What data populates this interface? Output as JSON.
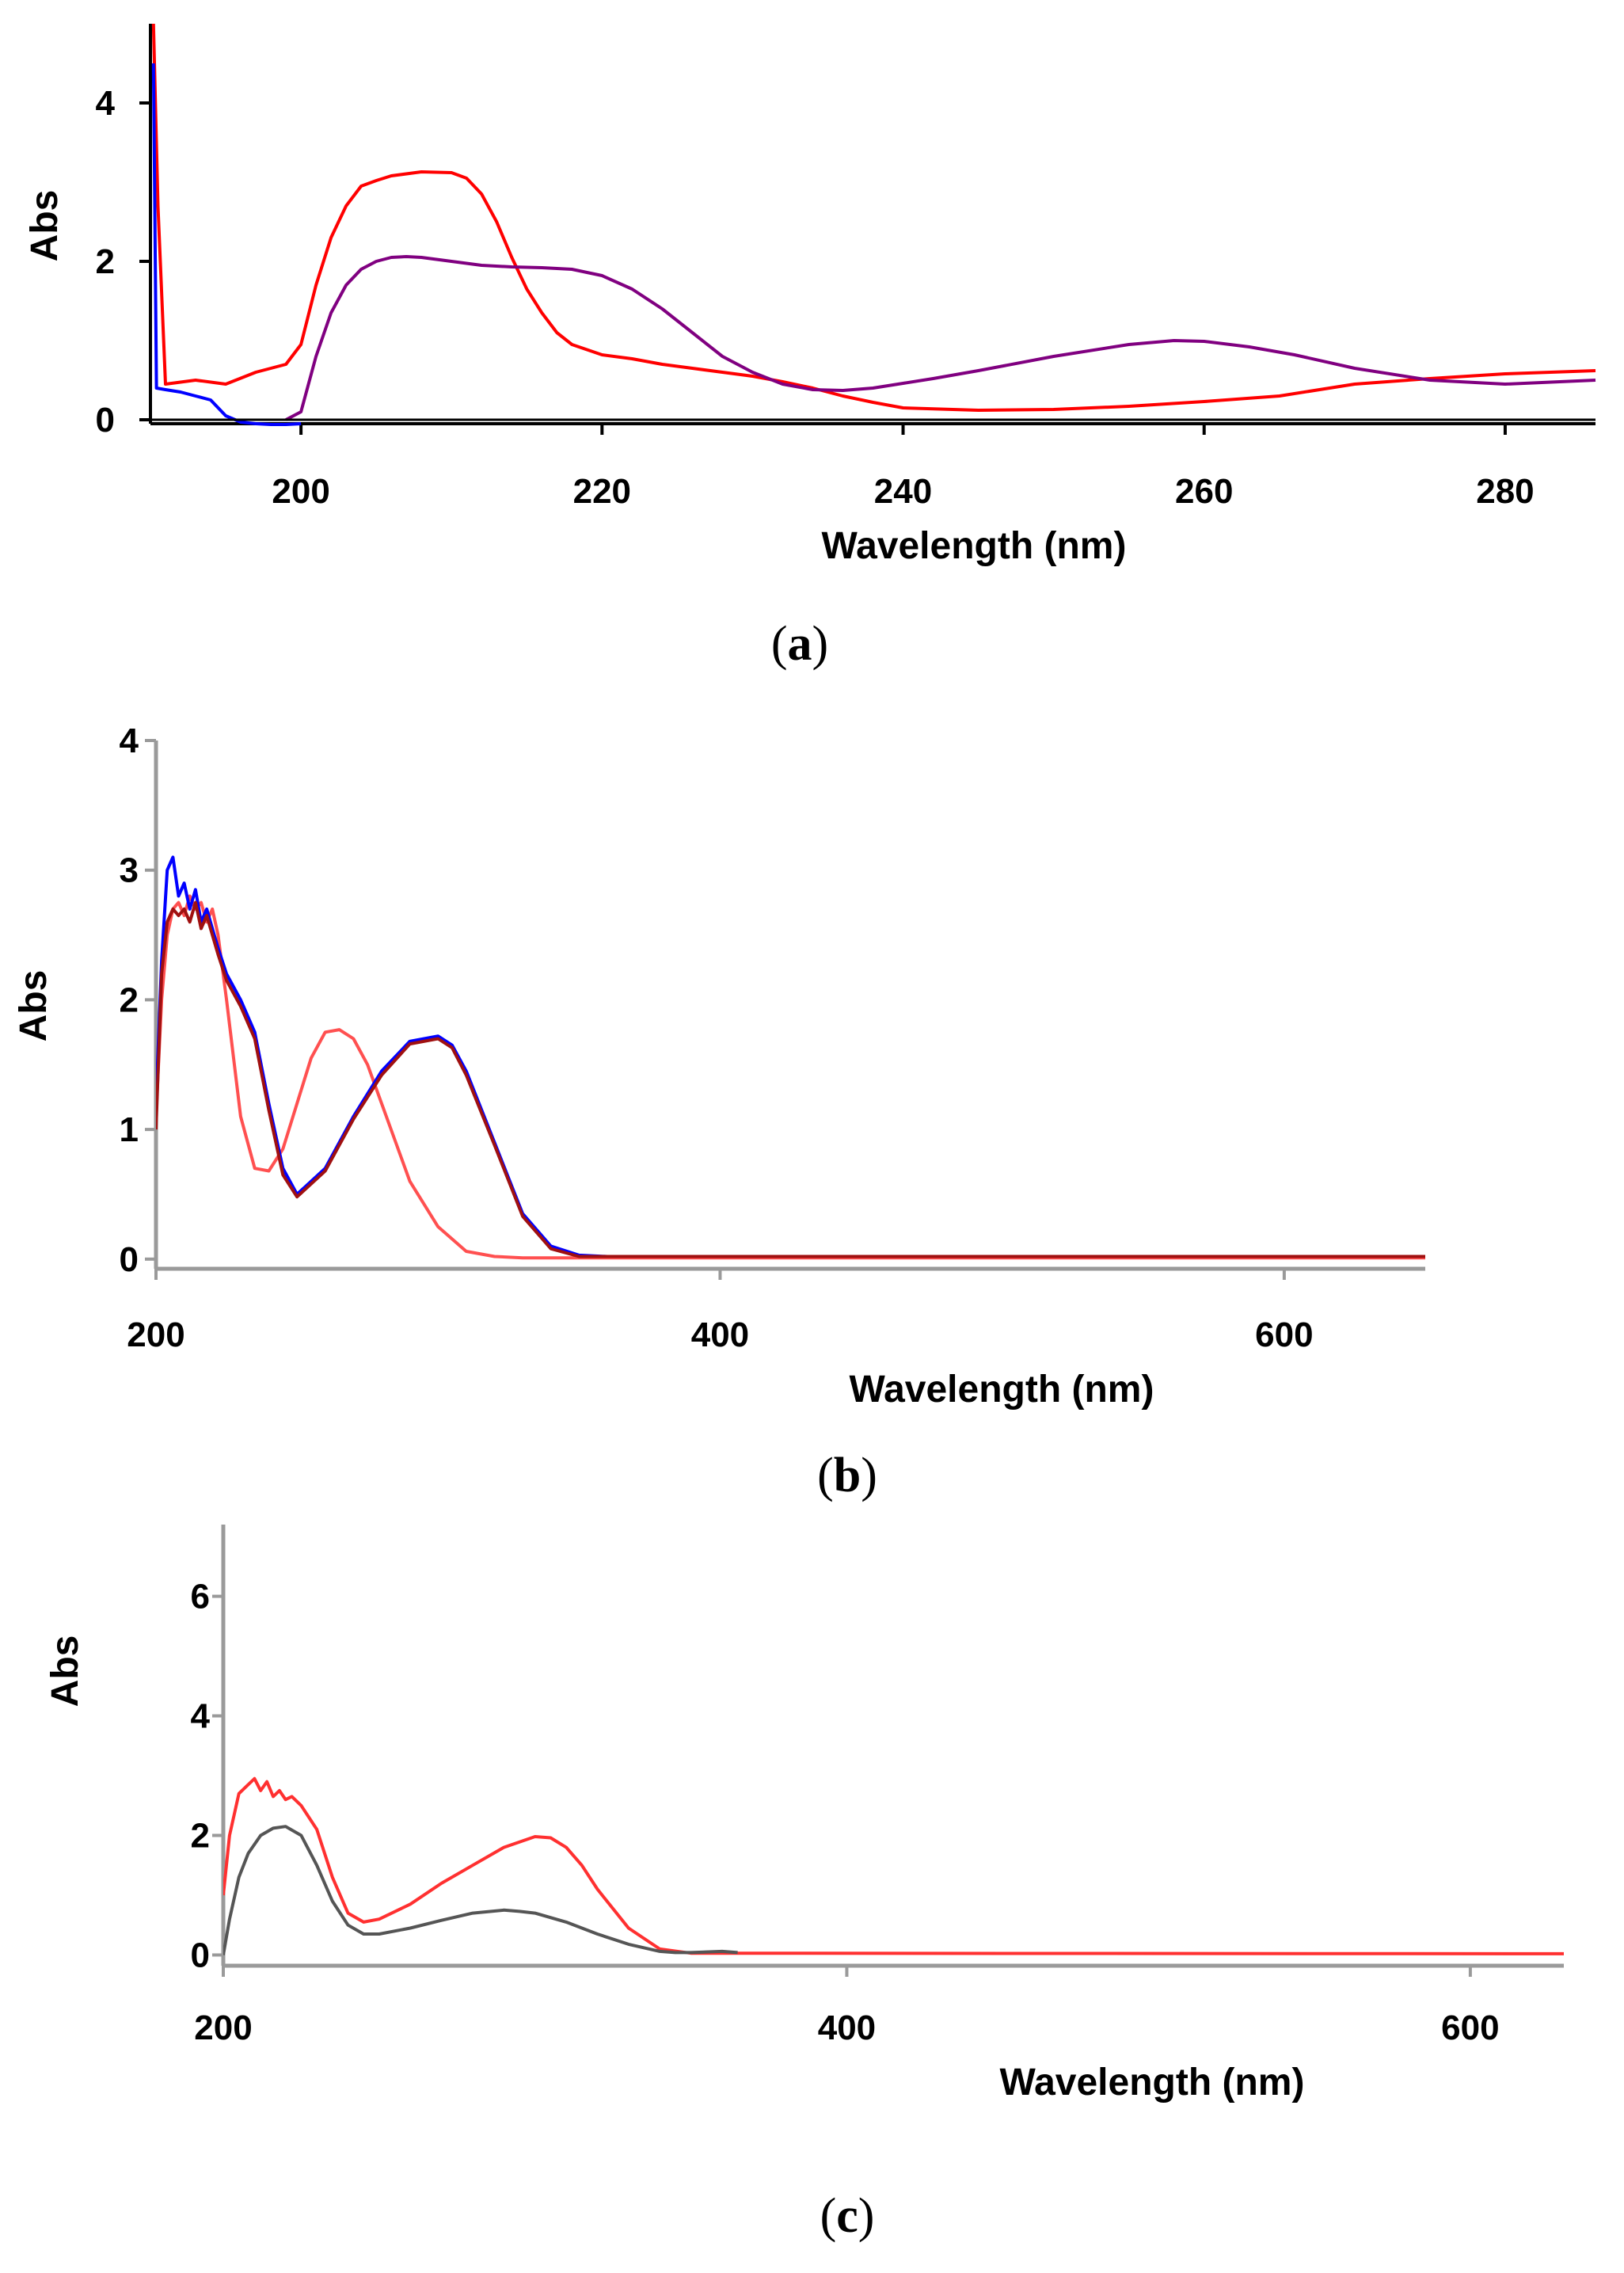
{
  "chart_data": [
    {
      "type": "line",
      "panel_label": "a",
      "xlabel": "Wavelength (nm)",
      "ylabel": "Abs",
      "xlim": [
        190,
        286
      ],
      "ylim": [
        -0.1,
        5
      ],
      "xticks": [
        200,
        220,
        240,
        260,
        280
      ],
      "yticks": [
        0,
        2,
        4
      ],
      "series": [
        {
          "name": "red",
          "color": "#ff0000",
          "x": [
            190.2,
            190.5,
            191,
            193,
            195,
            197,
            199,
            200,
            201,
            202,
            203,
            204,
            205,
            206,
            208,
            210,
            211,
            212,
            213,
            214,
            215,
            216,
            217,
            218,
            220,
            222,
            224,
            226,
            228,
            230,
            232,
            234,
            236,
            238,
            240,
            245,
            250,
            255,
            260,
            265,
            270,
            275,
            280,
            286
          ],
          "y": [
            5,
            2.7,
            0.45,
            0.5,
            0.45,
            0.6,
            0.7,
            0.95,
            1.7,
            2.3,
            2.7,
            2.95,
            3.02,
            3.08,
            3.13,
            3.12,
            3.05,
            2.85,
            2.5,
            2.05,
            1.65,
            1.35,
            1.1,
            0.95,
            0.82,
            0.77,
            0.7,
            0.65,
            0.6,
            0.55,
            0.48,
            0.4,
            0.3,
            0.22,
            0.15,
            0.12,
            0.13,
            0.17,
            0.23,
            0.3,
            0.45,
            0.52,
            0.58,
            0.62
          ]
        },
        {
          "name": "purple",
          "color": "#800080",
          "x": [
            199,
            200,
            201,
            202,
            203,
            204,
            205,
            206,
            207,
            208,
            210,
            212,
            214,
            216,
            218,
            220,
            222,
            224,
            226,
            228,
            230,
            232,
            234,
            236,
            238,
            240,
            242,
            245,
            250,
            255,
            258,
            260,
            263,
            266,
            270,
            275,
            280,
            286
          ],
          "y": [
            0.0,
            0.1,
            0.8,
            1.35,
            1.7,
            1.9,
            2.0,
            2.05,
            2.06,
            2.05,
            2.0,
            1.95,
            1.93,
            1.92,
            1.9,
            1.82,
            1.65,
            1.4,
            1.1,
            0.8,
            0.6,
            0.45,
            0.38,
            0.37,
            0.4,
            0.46,
            0.52,
            0.62,
            0.8,
            0.95,
            1.0,
            0.99,
            0.92,
            0.82,
            0.65,
            0.5,
            0.45,
            0.5
          ]
        },
        {
          "name": "blue",
          "color": "#0000ff",
          "x": [
            190.2,
            190.4,
            191,
            192,
            193,
            194,
            195,
            196,
            197,
            198,
            199,
            200
          ],
          "y": [
            4.5,
            0.4,
            0.38,
            0.35,
            0.3,
            0.25,
            0.05,
            -0.03,
            -0.05,
            -0.06,
            -0.06,
            -0.05
          ]
        },
        {
          "name": "black",
          "color": "#000000",
          "x": [
            190,
            286
          ],
          "y": [
            0,
            0
          ]
        }
      ]
    },
    {
      "type": "line",
      "panel_label": "b",
      "xlabel": "Wavelength (nm)",
      "ylabel": "Abs",
      "xlim": [
        200,
        650
      ],
      "ylim": [
        -0.05,
        4
      ],
      "xticks": [
        200,
        400,
        600
      ],
      "yticks": [
        0,
        1,
        2,
        3,
        4
      ],
      "series": [
        {
          "name": "red",
          "color": "#ff5050",
          "x": [
            200,
            202,
            204,
            206,
            208,
            210,
            212,
            214,
            216,
            218,
            220,
            222,
            225,
            230,
            235,
            240,
            245,
            250,
            255,
            260,
            265,
            270,
            275,
            280,
            285,
            290,
            300,
            310,
            320,
            330,
            340,
            350,
            400,
            500,
            600,
            650
          ],
          "y": [
            1.1,
            2.0,
            2.5,
            2.7,
            2.75,
            2.65,
            2.8,
            2.7,
            2.75,
            2.6,
            2.7,
            2.5,
            2.0,
            1.1,
            0.7,
            0.68,
            0.85,
            1.2,
            1.55,
            1.75,
            1.77,
            1.7,
            1.5,
            1.2,
            0.9,
            0.6,
            0.25,
            0.06,
            0.02,
            0.01,
            0.01,
            0.01,
            0.01,
            0.01,
            0.01,
            0.01
          ]
        },
        {
          "name": "blue",
          "color": "#0000ff",
          "x": [
            200,
            202,
            204,
            206,
            208,
            210,
            212,
            214,
            216,
            218,
            220,
            222,
            225,
            230,
            235,
            240,
            245,
            250,
            260,
            270,
            280,
            290,
            300,
            305,
            310,
            320,
            330,
            340,
            350,
            360,
            400,
            470,
            510,
            545,
            650
          ],
          "y": [
            1.2,
            2.3,
            3.0,
            3.1,
            2.8,
            2.9,
            2.7,
            2.85,
            2.6,
            2.7,
            2.55,
            2.4,
            2.2,
            2.0,
            1.75,
            1.2,
            0.7,
            0.5,
            0.7,
            1.1,
            1.45,
            1.68,
            1.72,
            1.65,
            1.45,
            0.9,
            0.35,
            0.1,
            0.03,
            0.02,
            0.02,
            0.02,
            0.02,
            0.02,
            0.02
          ]
        },
        {
          "name": "dark red",
          "color": "#a01010",
          "x": [
            200,
            202,
            204,
            206,
            208,
            210,
            212,
            214,
            216,
            218,
            220,
            222,
            225,
            230,
            235,
            240,
            245,
            250,
            260,
            270,
            280,
            290,
            300,
            305,
            310,
            320,
            330,
            340,
            350,
            650
          ],
          "y": [
            1.0,
            2.2,
            2.6,
            2.7,
            2.65,
            2.7,
            2.6,
            2.75,
            2.55,
            2.65,
            2.5,
            2.35,
            2.15,
            1.95,
            1.7,
            1.15,
            0.65,
            0.48,
            0.68,
            1.08,
            1.42,
            1.66,
            1.7,
            1.63,
            1.42,
            0.88,
            0.33,
            0.08,
            0.02,
            0.02
          ]
        }
      ]
    },
    {
      "type": "line",
      "panel_label": "c",
      "xlabel": "Wavelength (nm)",
      "ylabel": "Abs",
      "xlim": [
        200,
        630
      ],
      "ylim": [
        -0.1,
        7.2
      ],
      "xticks": [
        200,
        400,
        600
      ],
      "yticks": [
        0,
        2,
        4,
        6
      ],
      "series": [
        {
          "name": "red",
          "color": "#ff3030",
          "x": [
            200,
            202,
            205,
            208,
            210,
            212,
            214,
            216,
            218,
            220,
            222,
            225,
            230,
            235,
            240,
            245,
            250,
            260,
            270,
            280,
            290,
            300,
            305,
            310,
            315,
            320,
            330,
            340,
            350,
            630
          ],
          "y": [
            1.0,
            2.0,
            2.7,
            2.85,
            2.95,
            2.75,
            2.9,
            2.65,
            2.75,
            2.6,
            2.65,
            2.5,
            2.1,
            1.3,
            0.7,
            0.55,
            0.6,
            0.85,
            1.2,
            1.5,
            1.8,
            1.98,
            1.96,
            1.8,
            1.5,
            1.1,
            0.45,
            0.1,
            0.03,
            0.02
          ]
        },
        {
          "name": "gray",
          "color": "#555555",
          "x": [
            200,
            202,
            205,
            208,
            212,
            216,
            220,
            225,
            230,
            235,
            240,
            245,
            250,
            260,
            270,
            280,
            290,
            295,
            300,
            310,
            320,
            330,
            340,
            345,
            350,
            360,
            365
          ],
          "y": [
            0.0,
            0.6,
            1.3,
            1.7,
            2.0,
            2.12,
            2.15,
            2.0,
            1.5,
            0.9,
            0.5,
            0.35,
            0.35,
            0.45,
            0.58,
            0.7,
            0.75,
            0.73,
            0.7,
            0.55,
            0.35,
            0.18,
            0.06,
            0.04,
            0.04,
            0.06,
            0.04
          ]
        }
      ]
    }
  ]
}
